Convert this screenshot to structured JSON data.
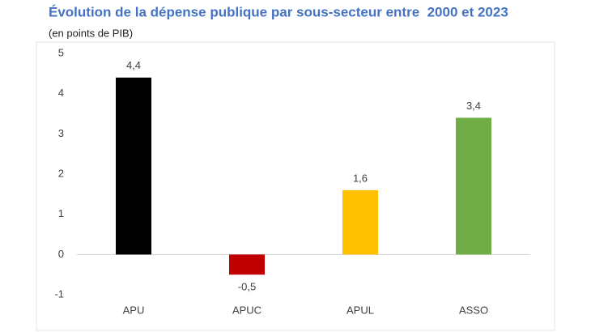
{
  "chart_data": {
    "type": "bar",
    "title": "Évolution de la dépense publique par sous-secteur entre  2000 et 2023",
    "subtitle": "(en points de PIB)",
    "categories": [
      "APU",
      "APUC",
      "APUL",
      "ASSO"
    ],
    "values": [
      4.4,
      -0.5,
      1.6,
      3.4
    ],
    "value_labels": [
      "4,4",
      "-0,5",
      "1,6",
      "3,4"
    ],
    "colors": [
      "#000000",
      "#c00000",
      "#ffc000",
      "#70ad47"
    ],
    "ylim": [
      -1,
      5
    ],
    "yticks": [
      -1,
      0,
      1,
      2,
      3,
      4,
      5
    ],
    "grid": false
  }
}
